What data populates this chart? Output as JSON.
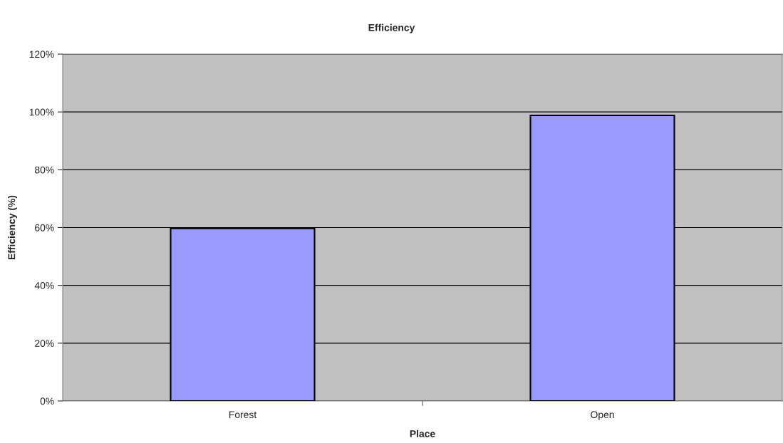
{
  "chart_data": {
    "type": "bar",
    "title": "Efficiency",
    "xlabel": "Place",
    "ylabel": "Efficiency (%)",
    "categories": [
      "Forest",
      "Open"
    ],
    "values": [
      59.7,
      98.8
    ],
    "color": "#9999ff",
    "ylim": [
      0,
      120
    ],
    "yticks": [
      {
        "value": 0,
        "label": "0%"
      },
      {
        "value": 20,
        "label": "20%"
      },
      {
        "value": 40,
        "label": "40%"
      },
      {
        "value": 60,
        "label": "60%"
      },
      {
        "value": 80,
        "label": "80%"
      },
      {
        "value": 100,
        "label": "100%"
      },
      {
        "value": 120,
        "label": "120%"
      }
    ],
    "grid": "y",
    "legend": false
  }
}
